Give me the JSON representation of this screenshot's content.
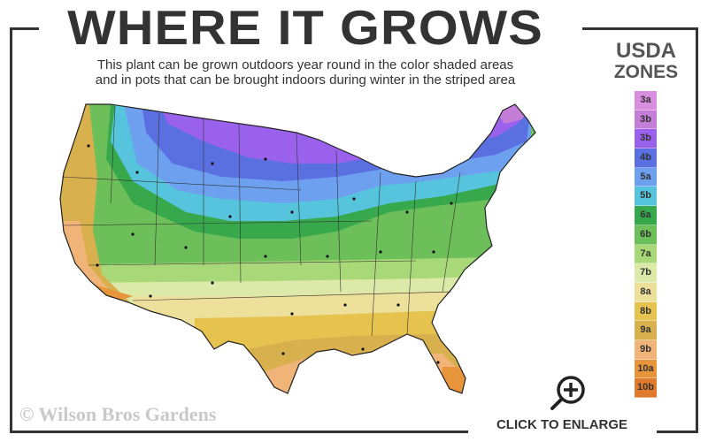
{
  "header": {
    "title": "WHERE IT GROWS",
    "subtitle_line1": "This plant can be grown outdoors year round in the color shaded areas",
    "subtitle_line2": "and in pots that can be brought indoors during winter in the striped area"
  },
  "legend": {
    "title_line1": "USDA",
    "title_line2": "ZONES",
    "zones": [
      {
        "label": "3a",
        "color": "#d98fe0"
      },
      {
        "label": "3b",
        "color": "#c47ed8"
      },
      {
        "label": "3b",
        "color": "#9a62ec"
      },
      {
        "label": "4b",
        "color": "#5a6fe0"
      },
      {
        "label": "5a",
        "color": "#6ea0f0"
      },
      {
        "label": "5b",
        "color": "#56c4dc"
      },
      {
        "label": "6a",
        "color": "#38a84c"
      },
      {
        "label": "6b",
        "color": "#6dbf5a"
      },
      {
        "label": "7a",
        "color": "#a8d878"
      },
      {
        "label": "7b",
        "color": "#dde9a8"
      },
      {
        "label": "8a",
        "color": "#ece09a"
      },
      {
        "label": "8b",
        "color": "#e6c24e"
      },
      {
        "label": "9a",
        "color": "#d9b04e"
      },
      {
        "label": "9b",
        "color": "#f0b478"
      },
      {
        "label": "10a",
        "color": "#e8943a"
      },
      {
        "label": "10b",
        "color": "#e07a2c"
      }
    ]
  },
  "map": {
    "region": "Contiguous United States",
    "icon": "us-hardiness-zone-map"
  },
  "footer": {
    "watermark": "© Wilson Bros Gardens",
    "enlarge_label": "CLICK TO ENLARGE",
    "enlarge_icon": "zoom-in-magnifier-icon"
  }
}
